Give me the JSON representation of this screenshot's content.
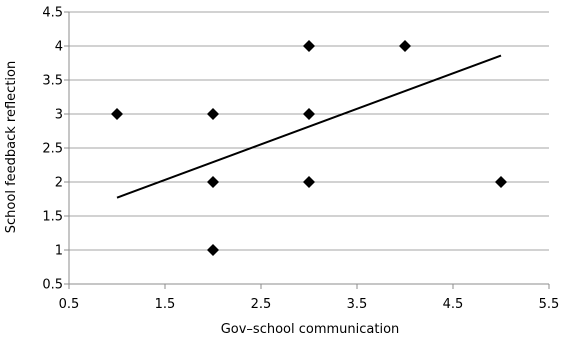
{
  "chart_data": {
    "type": "scatter",
    "xlabel": "Gov–school communication",
    "ylabel": "School feedback reflection",
    "xlim": [
      0.5,
      5.5
    ],
    "ylim": [
      0.5,
      4.5
    ],
    "xticks": [
      "0.5",
      "1.5",
      "2.5",
      "3.5",
      "4.5",
      "5.5"
    ],
    "yticks": [
      "0.5",
      "1",
      "1.5",
      "2",
      "2.5",
      "3",
      "3.5",
      "4",
      "4.5"
    ],
    "grid": "horizontal",
    "marker": "diamond",
    "points": [
      {
        "x": 1,
        "y": 3
      },
      {
        "x": 2,
        "y": 3
      },
      {
        "x": 2,
        "y": 2
      },
      {
        "x": 2,
        "y": 1
      },
      {
        "x": 3,
        "y": 4
      },
      {
        "x": 3,
        "y": 3
      },
      {
        "x": 3,
        "y": 2
      },
      {
        "x": 4,
        "y": 4
      },
      {
        "x": 5,
        "y": 2
      }
    ],
    "trendline": {
      "x": [
        1,
        5
      ],
      "y": [
        1.77,
        3.86
      ]
    },
    "colors": {
      "marker": "#000000",
      "trendline": "#000000",
      "grid": "#a6a6a6",
      "axis": "#8c8c8c"
    }
  }
}
